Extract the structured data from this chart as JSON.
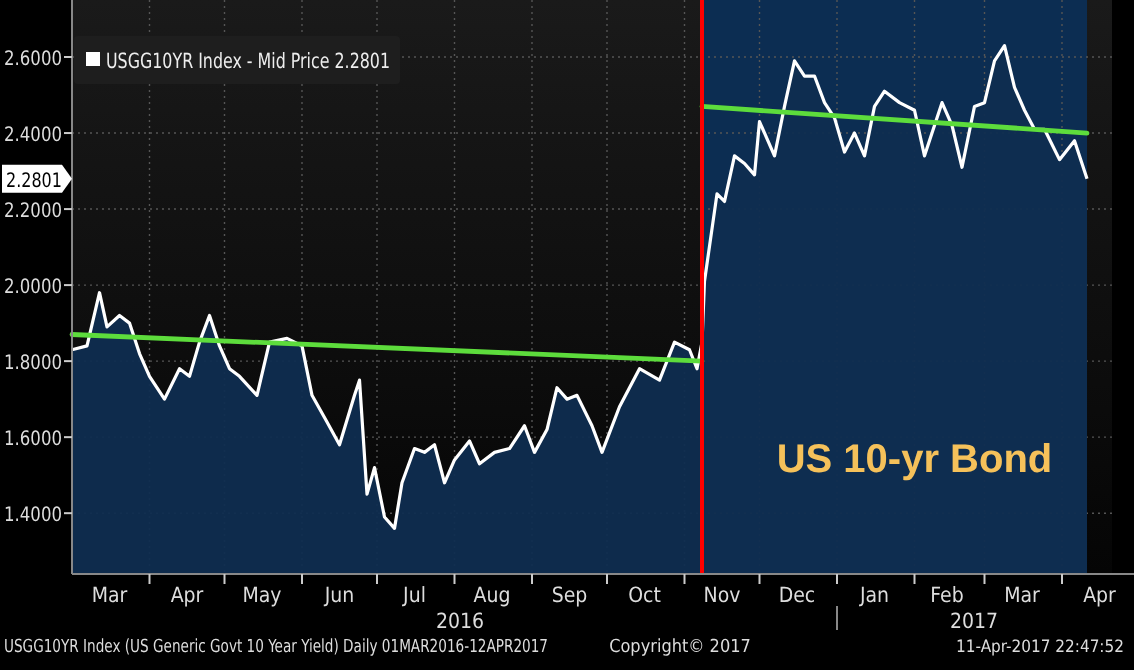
{
  "chart_data": {
    "type": "area",
    "x": [
      "2016-03-01",
      "2016-03-07",
      "2016-03-12",
      "2016-03-15",
      "2016-03-20",
      "2016-03-24",
      "2016-03-28",
      "2016-04-01",
      "2016-04-07",
      "2016-04-13",
      "2016-04-17",
      "2016-04-21",
      "2016-04-25",
      "2016-04-29",
      "2016-05-03",
      "2016-05-07",
      "2016-05-14",
      "2016-05-19",
      "2016-05-26",
      "2016-06-01",
      "2016-06-05",
      "2016-06-11",
      "2016-06-16",
      "2016-06-22",
      "2016-06-24",
      "2016-06-27",
      "2016-06-30",
      "2016-07-04",
      "2016-07-08",
      "2016-07-11",
      "2016-07-16",
      "2016-07-20",
      "2016-07-24",
      "2016-07-28",
      "2016-08-01",
      "2016-08-07",
      "2016-08-11",
      "2016-08-17",
      "2016-08-23",
      "2016-08-29",
      "2016-09-02",
      "2016-09-07",
      "2016-09-11",
      "2016-09-15",
      "2016-09-19",
      "2016-09-25",
      "2016-09-29",
      "2016-10-06",
      "2016-10-14",
      "2016-10-22",
      "2016-10-28",
      "2016-11-03",
      "2016-11-06",
      "2016-11-08",
      "2016-11-09",
      "2016-11-14",
      "2016-11-17",
      "2016-11-21",
      "2016-11-25",
      "2016-11-29",
      "2016-12-01",
      "2016-12-07",
      "2016-12-11",
      "2016-12-15",
      "2016-12-19",
      "2016-12-23",
      "2016-12-27",
      "2016-12-31",
      "2017-01-04",
      "2017-01-08",
      "2017-01-12",
      "2017-01-16",
      "2017-01-20",
      "2017-01-26",
      "2017-02-01",
      "2017-02-05",
      "2017-02-12",
      "2017-02-16",
      "2017-02-20",
      "2017-02-25",
      "2017-03-01",
      "2017-03-05",
      "2017-03-09",
      "2017-03-13",
      "2017-03-17",
      "2017-03-21",
      "2017-03-25",
      "2017-03-31",
      "2017-04-06",
      "2017-04-11"
    ],
    "series": [
      {
        "name": "USGG10YR Index - Mid Price 2.2801",
        "color": "#ffffff",
        "values": [
          1.83,
          1.84,
          1.98,
          1.89,
          1.92,
          1.9,
          1.82,
          1.76,
          1.7,
          1.78,
          1.76,
          1.85,
          1.92,
          1.84,
          1.78,
          1.76,
          1.71,
          1.85,
          1.86,
          1.84,
          1.71,
          1.64,
          1.58,
          1.71,
          1.75,
          1.45,
          1.52,
          1.39,
          1.36,
          1.48,
          1.57,
          1.56,
          1.58,
          1.48,
          1.54,
          1.59,
          1.53,
          1.56,
          1.57,
          1.63,
          1.56,
          1.62,
          1.73,
          1.7,
          1.71,
          1.63,
          1.56,
          1.68,
          1.78,
          1.75,
          1.85,
          1.83,
          1.78,
          1.85,
          2.01,
          2.24,
          2.22,
          2.34,
          2.32,
          2.29,
          2.43,
          2.34,
          2.47,
          2.59,
          2.55,
          2.55,
          2.48,
          2.44,
          2.35,
          2.4,
          2.34,
          2.47,
          2.51,
          2.48,
          2.46,
          2.34,
          2.48,
          2.42,
          2.31,
          2.47,
          2.48,
          2.59,
          2.63,
          2.52,
          2.46,
          2.41,
          2.41,
          2.33,
          2.38,
          2.28
        ]
      },
      {
        "type": "line",
        "color": "#5ddc3c",
        "x": [
          "2016-03-01",
          "2016-11-08"
        ],
        "values": [
          1.87,
          1.8
        ]
      },
      {
        "type": "line",
        "color": "#5ddc3c",
        "x": [
          "2016-11-08",
          "2017-04-11"
        ],
        "values": [
          2.47,
          2.4
        ]
      }
    ],
    "xlim": [
      "2016-03-01",
      "2017-04-21"
    ],
    "xticks": [
      {
        "value": "2016-03-16",
        "label": "Mar"
      },
      {
        "value": "2016-04-01",
        "label": null
      },
      {
        "value": "2016-04-16",
        "label": "Apr"
      },
      {
        "value": "2016-05-01",
        "label": null
      },
      {
        "value": "2016-05-16",
        "label": "May"
      },
      {
        "value": "2016-06-01",
        "label": null
      },
      {
        "value": "2016-06-16",
        "label": "Jun"
      },
      {
        "value": "2016-07-01",
        "label": null
      },
      {
        "value": "2016-07-16",
        "label": "Jul"
      },
      {
        "value": "2016-08-01",
        "label": null
      },
      {
        "value": "2016-08-16",
        "label": "Aug"
      },
      {
        "value": "2016-09-01",
        "label": null
      },
      {
        "value": "2016-09-16",
        "label": "Sep"
      },
      {
        "value": "2016-10-01",
        "label": null
      },
      {
        "value": "2016-10-16",
        "label": "Oct"
      },
      {
        "value": "2016-11-01",
        "label": null
      },
      {
        "value": "2016-11-16",
        "label": "Nov"
      },
      {
        "value": "2016-12-01",
        "label": null
      },
      {
        "value": "2016-12-16",
        "label": "Dec"
      },
      {
        "value": "2017-01-01",
        "label": null
      },
      {
        "value": "2017-01-16",
        "label": "Jan"
      },
      {
        "value": "2017-02-01",
        "label": null
      },
      {
        "value": "2017-02-14",
        "label": "Feb"
      },
      {
        "value": "2017-03-01",
        "label": null
      },
      {
        "value": "2017-03-16",
        "label": "Mar"
      },
      {
        "value": "2017-04-01",
        "label": null
      },
      {
        "value": "2017-04-16",
        "label": "Apr"
      }
    ],
    "ylim": [
      1.24,
      2.75
    ],
    "yticks": [
      {
        "value": 1.4,
        "label": "1.4000"
      },
      {
        "value": 1.6,
        "label": "1.6000"
      },
      {
        "value": 1.8,
        "label": "1.8000"
      },
      {
        "value": 2.0,
        "label": "2.0000"
      },
      {
        "value": 2.2,
        "label": "2.2000"
      },
      {
        "value": 2.4,
        "label": "2.4000"
      },
      {
        "value": 2.6,
        "label": "2.6000"
      }
    ],
    "grid": true,
    "legend": "top left",
    "ref_lines": [
      {
        "axis": "x",
        "value": "2016-11-08",
        "color": "#ff0000"
      }
    ],
    "bands": [
      {
        "axis": "x",
        "from": "2016-11-08",
        "to": "2017-04-11",
        "label": "US 10-yr Bond",
        "color": "#0c2d52"
      }
    ],
    "annotations": [
      "2.2801",
      "2016",
      "2017",
      "USGG10YR Index (US Generic Govt 10 Year Yield)  Daily 01MAR2016-12APR2017",
      "Copyright© 2017",
      "11-Apr-2017 22:47:52"
    ]
  }
}
